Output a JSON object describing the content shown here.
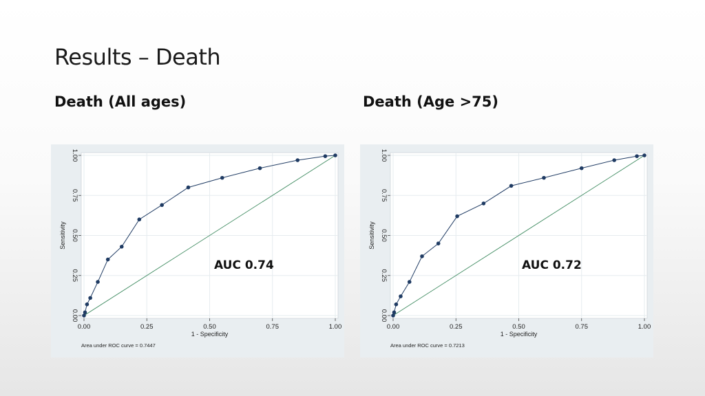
{
  "slide": {
    "title": "Results – Death"
  },
  "sections": [
    {
      "heading": "Death (All ages)",
      "auc_label": "AUC 0.74"
    },
    {
      "heading": "Death (Age >75)",
      "auc_label": "AUC 0.72"
    }
  ],
  "colors": {
    "curve": "#1f3b63",
    "point": "#1f3b63",
    "reference": "#3d8a5f",
    "plot_bg": "#ffffff",
    "panel_bg": "#e9eef1",
    "grid": "#e6ecef"
  },
  "chart_data": [
    {
      "type": "line",
      "xlabel": "1 - Specificity",
      "ylabel": "Sensitivity",
      "xlim": [
        0,
        1
      ],
      "ylim": [
        0,
        1
      ],
      "x_ticks": [
        "0.00",
        "0.25",
        "0.50",
        "0.75",
        "1.00"
      ],
      "y_ticks": [
        "0.00",
        "0.25",
        "0.50",
        "0.75",
        "1.00"
      ],
      "footnote": "Area under ROC curve = 0.7447",
      "grid": true,
      "series": [
        {
          "x": [
            0.0,
            0.004,
            0.012,
            0.025,
            0.055,
            0.095,
            0.15,
            0.22,
            0.31,
            0.415,
            0.55,
            0.7,
            0.85,
            0.96,
            1.0
          ],
          "y": [
            0.0,
            0.02,
            0.07,
            0.11,
            0.21,
            0.35,
            0.43,
            0.6,
            0.69,
            0.8,
            0.86,
            0.92,
            0.97,
            0.995,
            1.0
          ]
        }
      ],
      "reference_line": [
        [
          0,
          0
        ],
        [
          1,
          1
        ]
      ]
    },
    {
      "type": "line",
      "xlabel": "1 - Specificity",
      "ylabel": "Sensitivity",
      "xlim": [
        0,
        1
      ],
      "ylim": [
        0,
        1
      ],
      "x_ticks": [
        "0.00",
        "0.25",
        "0.50",
        "0.75",
        "1.00"
      ],
      "y_ticks": [
        "0.00",
        "0.25",
        "0.50",
        "0.75",
        "1.00"
      ],
      "footnote": "Area under ROC curve = 0.7213",
      "grid": true,
      "series": [
        {
          "x": [
            0.0,
            0.004,
            0.012,
            0.03,
            0.065,
            0.115,
            0.18,
            0.255,
            0.36,
            0.47,
            0.6,
            0.75,
            0.88,
            0.97,
            1.0
          ],
          "y": [
            0.0,
            0.02,
            0.07,
            0.12,
            0.21,
            0.37,
            0.45,
            0.62,
            0.7,
            0.81,
            0.86,
            0.92,
            0.97,
            0.995,
            1.0
          ]
        }
      ],
      "reference_line": [
        [
          0,
          0
        ],
        [
          1,
          1
        ]
      ]
    }
  ]
}
